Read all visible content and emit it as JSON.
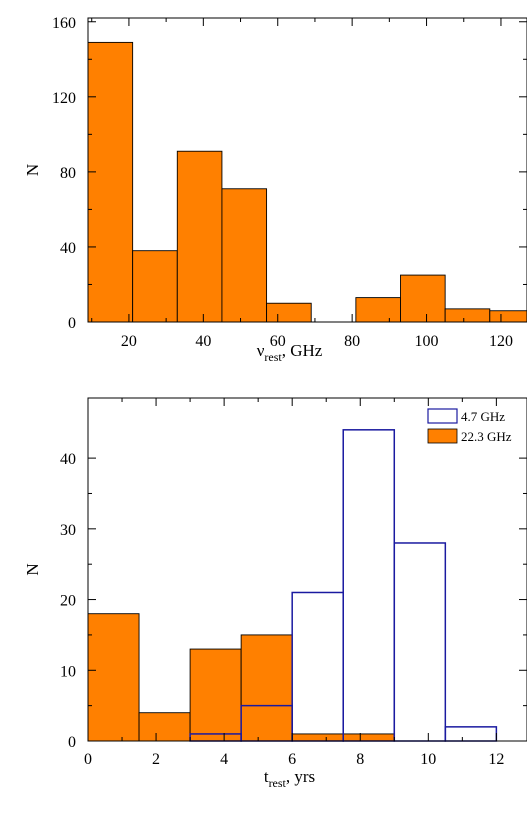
{
  "chart_data": [
    {
      "type": "bar",
      "subtype": "histogram",
      "ylabel": "N",
      "xlabel_main": "ν",
      "xlabel_sub": "rest",
      "xlabel_tail": ", GHz",
      "xlim": [
        9,
        127
      ],
      "ylim": [
        0,
        162
      ],
      "xticks": [
        20,
        40,
        60,
        80,
        100,
        120
      ],
      "yticks": [
        0,
        40,
        80,
        120,
        160
      ],
      "grid": false,
      "series": [
        {
          "color": "#ff8000",
          "edgecolor": "#000000",
          "filled": true,
          "bins": [
            {
              "x0": 9,
              "x1": 21,
              "value": 149
            },
            {
              "x0": 21,
              "x1": 33,
              "value": 38
            },
            {
              "x0": 33,
              "x1": 45,
              "value": 91
            },
            {
              "x0": 45,
              "x1": 57,
              "value": 71
            },
            {
              "x0": 57,
              "x1": 69,
              "value": 10
            },
            {
              "x0": 69,
              "x1": 81,
              "value": 0
            },
            {
              "x0": 81,
              "x1": 93,
              "value": 13
            },
            {
              "x0": 93,
              "x1": 105,
              "value": 25
            },
            {
              "x0": 105,
              "x1": 117,
              "value": 7
            },
            {
              "x0": 117,
              "x1": 129,
              "value": 6
            }
          ]
        }
      ]
    },
    {
      "type": "bar",
      "subtype": "histogram",
      "ylabel": "N",
      "xlabel_main": "t",
      "xlabel_sub": "rest",
      "xlabel_tail": ", yrs",
      "xlim": [
        0,
        12.9
      ],
      "ylim": [
        0,
        48.5
      ],
      "xticks": [
        0,
        2,
        4,
        6,
        8,
        10,
        12
      ],
      "yticks": [
        0,
        10,
        20,
        30,
        40
      ],
      "grid": false,
      "legend_position": "top-right",
      "series": [
        {
          "name": "22.3 GHz",
          "color": "#ff8000",
          "edgecolor": "#000000",
          "filled": true,
          "bins": [
            {
              "x0": 0,
              "x1": 1.5,
              "value": 18
            },
            {
              "x0": 1.5,
              "x1": 3,
              "value": 4
            },
            {
              "x0": 3,
              "x1": 4.5,
              "value": 13
            },
            {
              "x0": 4.5,
              "x1": 6,
              "value": 15
            },
            {
              "x0": 6,
              "x1": 7.5,
              "value": 1
            },
            {
              "x0": 7.5,
              "x1": 9,
              "value": 1
            }
          ]
        },
        {
          "name": "4.7 GHz",
          "color": "none",
          "edgecolor": "#1a1aa0",
          "filled": false,
          "bins": [
            {
              "x0": 3,
              "x1": 4.5,
              "value": 1
            },
            {
              "x0": 4.5,
              "x1": 6,
              "value": 5
            },
            {
              "x0": 6,
              "x1": 7.5,
              "value": 21
            },
            {
              "x0": 7.5,
              "x1": 9,
              "value": 44
            },
            {
              "x0": 9,
              "x1": 10.5,
              "value": 28
            },
            {
              "x0": 10.5,
              "x1": 12,
              "value": 2
            }
          ]
        }
      ]
    }
  ]
}
